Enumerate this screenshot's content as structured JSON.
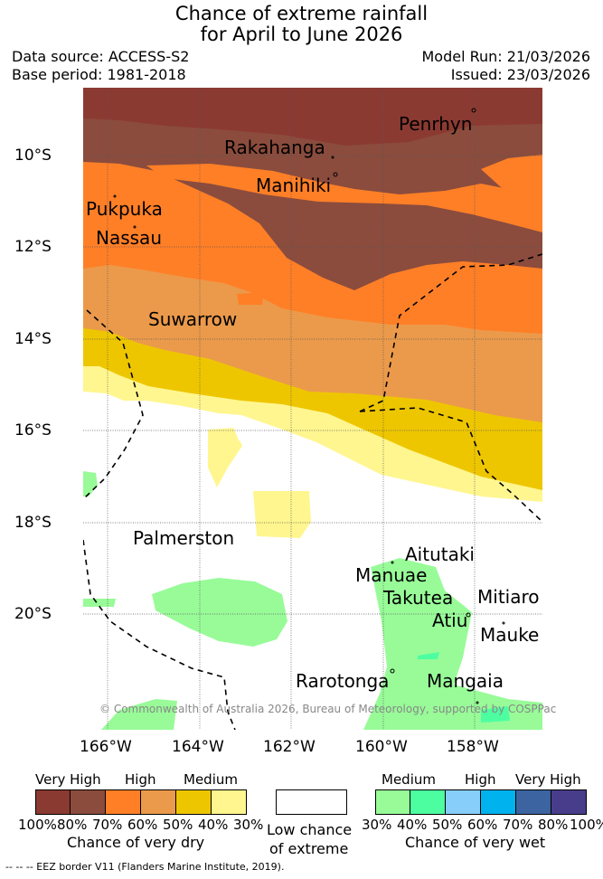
{
  "title_line1": "Chance of extreme rainfall",
  "title_line2": "for April to June 2026",
  "data_source": "Data source: ACCESS-S2",
  "base_period": "Base period: 1981-2018",
  "model_run": "Model Run: 21/03/2026",
  "issued": "Issued: 23/03/2026",
  "lat_labels": [
    "10°S",
    "12°S",
    "14°S",
    "16°S",
    "18°S",
    "20°S"
  ],
  "lon_labels": [
    "166°W",
    "164°W",
    "162°W",
    "160°W",
    "158°W"
  ],
  "places": {
    "penrhyn": "Penrhyn",
    "rakahanga": "Rakahanga",
    "manihiki": "Manihiki",
    "pukapuka": "Pukpuka",
    "nassau": "Nassau",
    "suwarrow": "Suwarrow",
    "palmerston": "Palmerston",
    "aitutaki": "Aitutaki",
    "manuae": "Manuae",
    "takutea": "Takutea",
    "mitiaro": "Mitiaro",
    "atiu": "Atiu",
    "mauke": "Mauke",
    "rarotonga": "Rarotonga",
    "mangaia": "Mangaia"
  },
  "copyright": "© Commonwealth of Australia 2026, Bureau of Meteorology, supported by COSPPac",
  "legend": {
    "dry": {
      "headers": [
        "Very High",
        "High",
        "Medium"
      ],
      "colors": [
        "#8b3a32",
        "#8b4c3d",
        "#ff7f27",
        "#eb9a4b",
        "#eec600",
        "#fff68f"
      ],
      "ticks": [
        "100%",
        "80%",
        "70%",
        "60%",
        "50%",
        "40%",
        "30%"
      ],
      "caption": "Chance of very dry"
    },
    "low": {
      "line1": "Low chance",
      "line2": "of extreme",
      "color": "#ffffff"
    },
    "wet": {
      "headers": [
        "Medium",
        "High",
        "Very High"
      ],
      "colors": [
        "#98fb98",
        "#4dfea1",
        "#87cefa",
        "#00b2ee",
        "#3b64a0",
        "#483d8b"
      ],
      "ticks": [
        "30%",
        "40%",
        "50%",
        "60%",
        "70%",
        "80%",
        "100%"
      ],
      "caption": "Chance of very wet"
    }
  },
  "eez_note": "--  --  -- EEZ border V11 (Flanders Marine Institute, 2019)."
}
